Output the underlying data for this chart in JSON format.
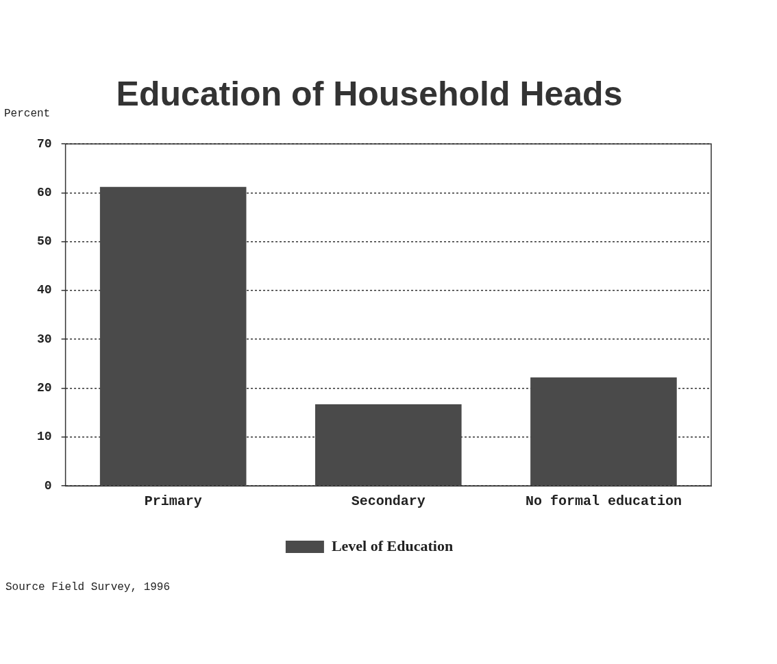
{
  "chart_data": {
    "type": "bar",
    "title": "Education of Household Heads",
    "ylabel": "Percent",
    "categories": [
      "Primary",
      "Secondary",
      "No formal education"
    ],
    "series": [
      {
        "name": "Level of Education",
        "color": "#4a4a4a",
        "values": [
          61.2,
          16.7,
          22.2
        ]
      }
    ],
    "ylim": [
      0,
      70
    ],
    "yticks": [
      0,
      10,
      20,
      30,
      40,
      50,
      60,
      70
    ],
    "grid": "y",
    "legend": "bottom",
    "annotations": [
      "Source Field Survey, 1996"
    ]
  }
}
